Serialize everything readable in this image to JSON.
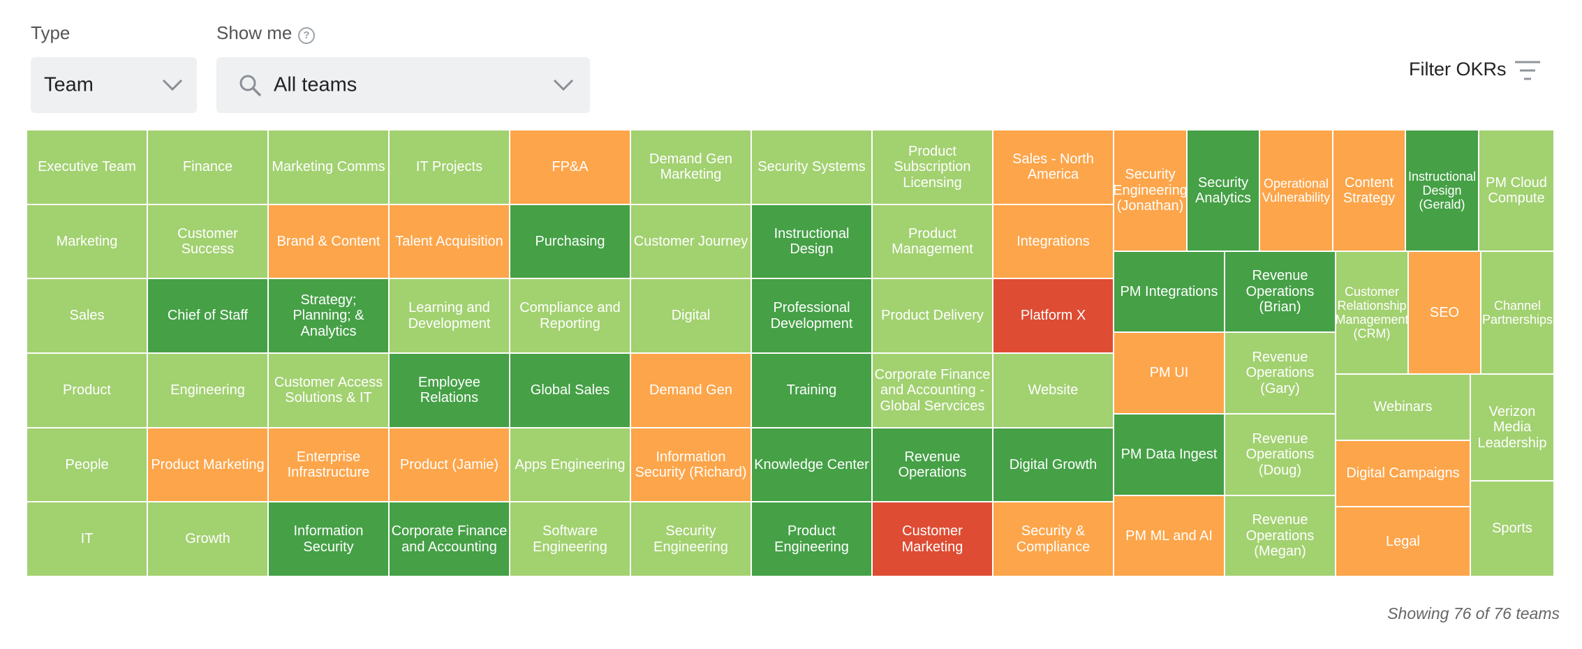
{
  "type_filter": {
    "label": "Type",
    "value": "Team"
  },
  "show_me": {
    "label": "Show me",
    "help_glyph": "?",
    "value": "All teams"
  },
  "filter_okrs_label": "Filter OKRs",
  "footer": "Showing 76 of 76 teams",
  "colors": {
    "light": "#a2d170",
    "dark": "#45a046",
    "orange": "#fda54a",
    "red": "#de4c33"
  },
  "teams": [
    {
      "name": "Executive Team",
      "status": "light"
    },
    {
      "name": "Finance",
      "status": "light"
    },
    {
      "name": "Marketing Comms",
      "status": "light"
    },
    {
      "name": "IT Projects",
      "status": "light"
    },
    {
      "name": "FP&A",
      "status": "orange"
    },
    {
      "name": "Demand Gen Marketing",
      "status": "light"
    },
    {
      "name": "Security Systems",
      "status": "light"
    },
    {
      "name": "Product Subscription Licensing",
      "status": "light"
    },
    {
      "name": "Sales - North America",
      "status": "orange"
    },
    {
      "name": "Marketing",
      "status": "light"
    },
    {
      "name": "Customer Success",
      "status": "light"
    },
    {
      "name": "Brand & Content",
      "status": "orange"
    },
    {
      "name": "Talent Acquisition",
      "status": "orange"
    },
    {
      "name": "Purchasing",
      "status": "dark"
    },
    {
      "name": "Customer Journey",
      "status": "light"
    },
    {
      "name": "Instructional Design",
      "status": "dark"
    },
    {
      "name": "Product Management",
      "status": "light"
    },
    {
      "name": "Integrations",
      "status": "orange"
    },
    {
      "name": "Sales",
      "status": "light"
    },
    {
      "name": "Chief of Staff",
      "status": "dark"
    },
    {
      "name": "Strategy; Planning; & Analytics",
      "status": "dark"
    },
    {
      "name": "Learning and Development",
      "status": "light"
    },
    {
      "name": "Compliance and Reporting",
      "status": "light"
    },
    {
      "name": "Digital",
      "status": "light"
    },
    {
      "name": "Professional Development",
      "status": "dark"
    },
    {
      "name": "Product Delivery",
      "status": "light"
    },
    {
      "name": "Platform X",
      "status": "red"
    },
    {
      "name": "Product",
      "status": "light"
    },
    {
      "name": "Engineering",
      "status": "light"
    },
    {
      "name": "Customer Access Solutions & IT",
      "status": "light"
    },
    {
      "name": "Employee Relations",
      "status": "dark"
    },
    {
      "name": "Global Sales",
      "status": "dark"
    },
    {
      "name": "Demand Gen",
      "status": "orange"
    },
    {
      "name": "Training",
      "status": "dark"
    },
    {
      "name": "Corporate Finance and Accounting - Global Servcices",
      "status": "light"
    },
    {
      "name": "Website",
      "status": "light"
    },
    {
      "name": "People",
      "status": "light"
    },
    {
      "name": "Product Marketing",
      "status": "orange"
    },
    {
      "name": "Enterprise Infrastructure",
      "status": "orange"
    },
    {
      "name": "Product (Jamie)",
      "status": "orange"
    },
    {
      "name": "Apps Engineering",
      "status": "light"
    },
    {
      "name": "Information Security (Richard)",
      "status": "orange"
    },
    {
      "name": "Knowledge Center",
      "status": "dark"
    },
    {
      "name": "Revenue Operations",
      "status": "dark"
    },
    {
      "name": "Digital Growth",
      "status": "dark"
    },
    {
      "name": "IT",
      "status": "light"
    },
    {
      "name": "Growth",
      "status": "light"
    },
    {
      "name": "Information Security",
      "status": "dark"
    },
    {
      "name": "Corporate Finance and Accounting",
      "status": "dark"
    },
    {
      "name": "Software Engineering",
      "status": "light"
    },
    {
      "name": "Security Engineering",
      "status": "light"
    },
    {
      "name": "Product Engineering",
      "status": "dark"
    },
    {
      "name": "Customer Marketing",
      "status": "red"
    },
    {
      "name": "Security & Compliance",
      "status": "orange"
    },
    {
      "name": "Security Engineering (Jonathan)",
      "status": "orange"
    },
    {
      "name": "Security Analytics",
      "status": "dark"
    },
    {
      "name": "Operational Vulnerability",
      "status": "orange"
    },
    {
      "name": "Content Strategy",
      "status": "orange"
    },
    {
      "name": "Instructional Design (Gerald)",
      "status": "dark"
    },
    {
      "name": "PM Cloud Compute",
      "status": "light"
    },
    {
      "name": "PM Integrations",
      "status": "dark"
    },
    {
      "name": "Revenue Operations (Brian)",
      "status": "dark"
    },
    {
      "name": "PM UI",
      "status": "orange"
    },
    {
      "name": "Revenue Operations (Gary)",
      "status": "light"
    },
    {
      "name": "PM Data Ingest",
      "status": "dark"
    },
    {
      "name": "Revenue Operations (Doug)",
      "status": "light"
    },
    {
      "name": "PM ML and AI",
      "status": "orange"
    },
    {
      "name": "Revenue Operations (Megan)",
      "status": "light"
    },
    {
      "name": "Customer Relationship Management (CRM)",
      "status": "light"
    },
    {
      "name": "SEO",
      "status": "orange"
    },
    {
      "name": "Channel Partnerships",
      "status": "light"
    },
    {
      "name": "Webinars",
      "status": "light"
    },
    {
      "name": "Verizon Media Leadership",
      "status": "light"
    },
    {
      "name": "Digital Campaigns",
      "status": "orange"
    },
    {
      "name": "Legal",
      "status": "orange"
    },
    {
      "name": "Sports",
      "status": "light"
    }
  ]
}
